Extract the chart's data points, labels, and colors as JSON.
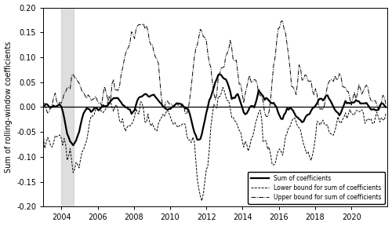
{
  "ylabel": "Sum of rolling-window coefficients",
  "ylim": [
    -0.2,
    0.2
  ],
  "yticks": [
    -0.2,
    -0.15,
    -0.1,
    -0.05,
    0.0,
    0.05,
    0.1,
    0.15,
    0.2
  ],
  "xlim": [
    2003.0,
    2022.0
  ],
  "xticks": [
    2004,
    2006,
    2008,
    2010,
    2012,
    2014,
    2016,
    2018,
    2020
  ],
  "shaded_region": [
    2004.0,
    2004.67
  ],
  "legend_labels": [
    "Sum of coefficients",
    "Lower bound for sum of coefficients",
    "Upper bound for sum of coefficients"
  ],
  "background_color": "#ffffff"
}
